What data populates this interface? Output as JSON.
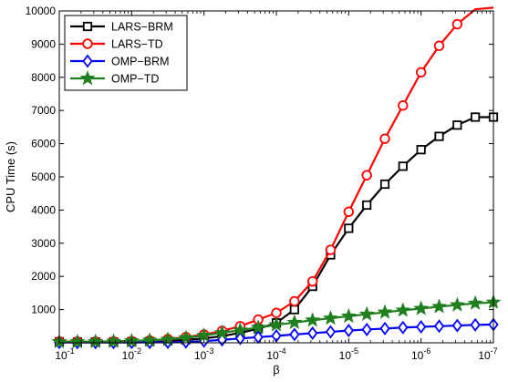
{
  "chart_data": {
    "type": "line",
    "title": "",
    "xlabel": "β",
    "ylabel": "CPU Time (s)",
    "x": [
      0.1,
      0.0562,
      0.0316,
      0.0178,
      0.01,
      0.00562,
      0.00316,
      0.00178,
      0.001,
      0.000562,
      0.000316,
      0.000178,
      0.0001,
      5.62e-05,
      3.16e-05,
      1.78e-05,
      1e-05,
      5.62e-06,
      3.16e-06,
      1.78e-06,
      1e-06,
      5.62e-07,
      3.16e-07,
      1.78e-07,
      1e-07
    ],
    "xscale": "log-reversed",
    "xlim": [
      0.1,
      1e-07
    ],
    "ylim": [
      0,
      10000
    ],
    "x_ticks": [
      {
        "base": "10",
        "exp": "-1",
        "value": 0.1
      },
      {
        "base": "10",
        "exp": "-2",
        "value": 0.01
      },
      {
        "base": "10",
        "exp": "-3",
        "value": 0.001
      },
      {
        "base": "10",
        "exp": "-4",
        "value": 0.0001
      },
      {
        "base": "10",
        "exp": "-5",
        "value": 1e-05
      },
      {
        "base": "10",
        "exp": "-6",
        "value": 1e-06
      },
      {
        "base": "10",
        "exp": "-7",
        "value": 1e-07
      }
    ],
    "y_ticks": [
      "1000",
      "2000",
      "3000",
      "4000",
      "5000",
      "6000",
      "7000",
      "8000",
      "9000",
      "10000"
    ],
    "grid": false,
    "legend": "top-left",
    "series": [
      {
        "name": "LARS−BRM",
        "color": "#000000",
        "marker": "square",
        "values": [
          30,
          25,
          25,
          25,
          30,
          40,
          60,
          90,
          130,
          200,
          300,
          420,
          600,
          1000,
          1700,
          2650,
          3450,
          4150,
          4780,
          5320,
          5820,
          6220,
          6560,
          6800,
          6800
        ]
      },
      {
        "name": "LARS−TD",
        "color": "#ff0000",
        "marker": "circle",
        "values": [
          40,
          35,
          35,
          40,
          50,
          70,
          110,
          170,
          250,
          360,
          500,
          700,
          900,
          1250,
          1850,
          2800,
          3950,
          5050,
          6150,
          7150,
          8150,
          8950,
          9600,
          10050,
          10100
        ]
      },
      {
        "name": "OMP−BRM",
        "color": "#0000ff",
        "marker": "diamond",
        "values": [
          10,
          8,
          8,
          8,
          10,
          12,
          15,
          25,
          50,
          90,
          130,
          170,
          210,
          250,
          290,
          330,
          370,
          400,
          430,
          460,
          480,
          500,
          520,
          540,
          550
        ]
      },
      {
        "name": "OMP−TD",
        "color": "#1f7f1f",
        "marker": "star",
        "values": [
          30,
          30,
          35,
          40,
          55,
          75,
          100,
          150,
          220,
          300,
          380,
          460,
          540,
          610,
          680,
          740,
          800,
          860,
          920,
          980,
          1030,
          1090,
          1140,
          1190,
          1220
        ]
      }
    ]
  }
}
